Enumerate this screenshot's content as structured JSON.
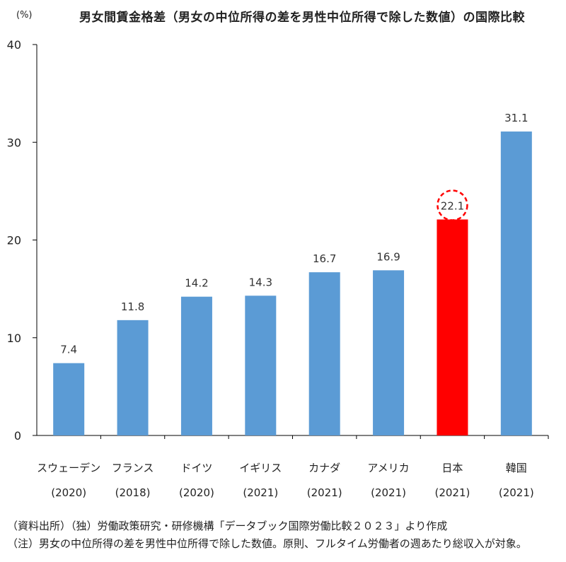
{
  "chart_data": {
    "type": "bar",
    "title": "男女間賃金格差（男女の中位所得の差を男性中位所得で除した数値）の国際比較",
    "ylabel": "(%)",
    "xlabel": "",
    "ylim": [
      0,
      40
    ],
    "yticks": [
      "0",
      "10",
      "20",
      "30",
      "40"
    ],
    "grid": false,
    "categories": [
      "スウェーデン",
      "フランス",
      "ドイツ",
      "イギリス",
      "カナダ",
      "アメリカ",
      "日本",
      "韓国"
    ],
    "years": [
      "(2020)",
      "(2018)",
      "(2020)",
      "(2021)",
      "(2021)",
      "(2021)",
      "(2021)",
      "(2021)"
    ],
    "values": [
      7.4,
      11.8,
      14.2,
      14.3,
      16.7,
      16.9,
      22.1,
      31.1
    ],
    "labels": [
      "7.4",
      "11.8",
      "14.2",
      "14.3",
      "16.7",
      "16.9",
      "22.1",
      "31.1"
    ],
    "bar_color": "#5b9bd5",
    "highlight_index": 6,
    "highlight_color": "#ff0000"
  },
  "notes": {
    "source": "（資料出所）（独）労働政策研究・研修機構「データブック国際労働比較２０２３」より作成",
    "note": "（注）男女の中位所得の差を男性中位所得で除した数値。原則、フルタイム労働者の週あたり総収入が対象。"
  }
}
